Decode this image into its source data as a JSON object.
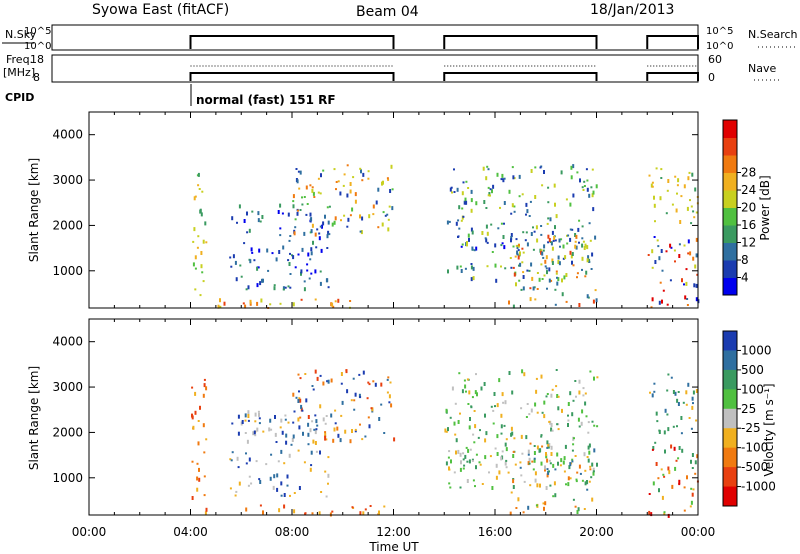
{
  "header": {
    "station": "Syowa East (fitACF)",
    "beam": "Beam 04",
    "date": "18/Jan/2013",
    "cpid_program": "normal (fast) 151 RF"
  },
  "labels": {
    "nsky": "N.Sky",
    "nsky_hi": "10^5",
    "nsky_lo": "10^0",
    "nsearch": "N.Search",
    "nsearch_hi": "10^5",
    "nsearch_lo": "10^0",
    "freq": "Freq.",
    "freq_unit": "[MHz]",
    "freq_hi": "18",
    "freq_lo": "8",
    "nave": "Nave",
    "nave_hi": "60",
    "nave_lo": "0",
    "cpid": "CPID"
  },
  "chart_data": [
    {
      "type": "heatmap",
      "name": "power",
      "ylabel": "Slant Range [km]",
      "yticks": [
        1000,
        2000,
        3000,
        4000
      ],
      "ylim": [
        180,
        4500
      ],
      "xlim": [
        0,
        24
      ],
      "colorbar": {
        "label": "Power [dB]",
        "ticks": [
          "4",
          "8",
          "12",
          "16",
          "20",
          "24",
          "28"
        ],
        "colors": [
          "#0000ee",
          "#1b3cb0",
          "#2f6fa0",
          "#3a9a60",
          "#50c040",
          "#c8d020",
          "#f0b020",
          "#f07a10",
          "#e84010",
          "#e00000"
        ]
      },
      "scatter_regions": [
        {
          "t": [
            4.0,
            4.6
          ],
          "r": [
            200,
            3300
          ],
          "levels": [
            3,
            4,
            5,
            6
          ]
        },
        {
          "t": [
            4.4,
            12.0
          ],
          "r": [
            200,
            420
          ],
          "levels": [
            5,
            6,
            7,
            8
          ]
        },
        {
          "t": [
            5.5,
            9.5
          ],
          "r": [
            600,
            2500
          ],
          "levels": [
            0,
            1,
            2,
            3
          ]
        },
        {
          "t": [
            8.0,
            12.0
          ],
          "r": [
            1800,
            3400
          ],
          "levels": [
            1,
            2,
            4,
            5,
            6,
            7
          ]
        },
        {
          "t": [
            14.0,
            16.5
          ],
          "r": [
            1450,
            1800
          ],
          "levels": [
            0,
            1,
            2
          ]
        },
        {
          "t": [
            14.0,
            20.0
          ],
          "r": [
            800,
            3400
          ],
          "levels": [
            1,
            2,
            3,
            4,
            5
          ]
        },
        {
          "t": [
            16.5,
            20.0
          ],
          "r": [
            250,
            1800
          ],
          "levels": [
            2,
            3,
            5,
            6,
            7,
            8
          ]
        },
        {
          "t": [
            22.0,
            24.0
          ],
          "r": [
            200,
            1800
          ],
          "levels": [
            0,
            1,
            2,
            5,
            7,
            8,
            9
          ]
        },
        {
          "t": [
            22.0,
            24.0
          ],
          "r": [
            2000,
            3300
          ],
          "levels": [
            3,
            5,
            6
          ]
        }
      ]
    },
    {
      "type": "heatmap",
      "name": "velocity",
      "ylabel": "Slant Range [km]",
      "xlabel": "Time UT",
      "yticks": [
        1000,
        2000,
        3000,
        4000
      ],
      "ylim": [
        180,
        4500
      ],
      "xlim": [
        0,
        24
      ],
      "xticks": [
        "00:00",
        "04:00",
        "08:00",
        "12:00",
        "16:00",
        "20:00",
        "00:00"
      ],
      "colorbar": {
        "label": "Velocity [m s⁻¹]",
        "ticks": [
          "1000",
          "500",
          "100",
          "25",
          "-25",
          "-100",
          "-500",
          "-1000"
        ],
        "colors": [
          "#1b3cb0",
          "#2f6fa0",
          "#3a9a60",
          "#50c040",
          "#c0c0c0",
          "#f0b020",
          "#f07a10",
          "#e84010",
          "#e00000"
        ]
      },
      "scatter_regions": [
        {
          "t": [
            4.0,
            4.6
          ],
          "r": [
            200,
            3300
          ],
          "levels": [
            5,
            6,
            7
          ]
        },
        {
          "t": [
            4.4,
            12.0
          ],
          "r": [
            200,
            420
          ],
          "levels": [
            5,
            6,
            7
          ]
        },
        {
          "t": [
            5.5,
            9.5
          ],
          "r": [
            600,
            2500
          ],
          "levels": [
            0,
            1,
            4,
            5
          ]
        },
        {
          "t": [
            8.0,
            12.0
          ],
          "r": [
            1800,
            3400
          ],
          "levels": [
            0,
            1,
            5,
            6,
            7
          ]
        },
        {
          "t": [
            14.0,
            16.5
          ],
          "r": [
            1450,
            1800
          ],
          "levels": [
            2,
            3,
            4
          ]
        },
        {
          "t": [
            14.0,
            20.0
          ],
          "r": [
            800,
            3400
          ],
          "levels": [
            2,
            3,
            4,
            5
          ]
        },
        {
          "t": [
            16.5,
            20.0
          ],
          "r": [
            250,
            1800
          ],
          "levels": [
            1,
            2,
            3,
            5,
            6
          ]
        },
        {
          "t": [
            22.0,
            24.0
          ],
          "r": [
            200,
            1800
          ],
          "levels": [
            2,
            3,
            5,
            6,
            7,
            8
          ]
        },
        {
          "t": [
            22.0,
            24.0
          ],
          "r": [
            2000,
            3300
          ],
          "levels": [
            1,
            2,
            5
          ]
        }
      ]
    }
  ],
  "segments_hours": [
    [
      4.0,
      12.0
    ],
    [
      14.0,
      20.0
    ],
    [
      22.0,
      24.0
    ]
  ]
}
